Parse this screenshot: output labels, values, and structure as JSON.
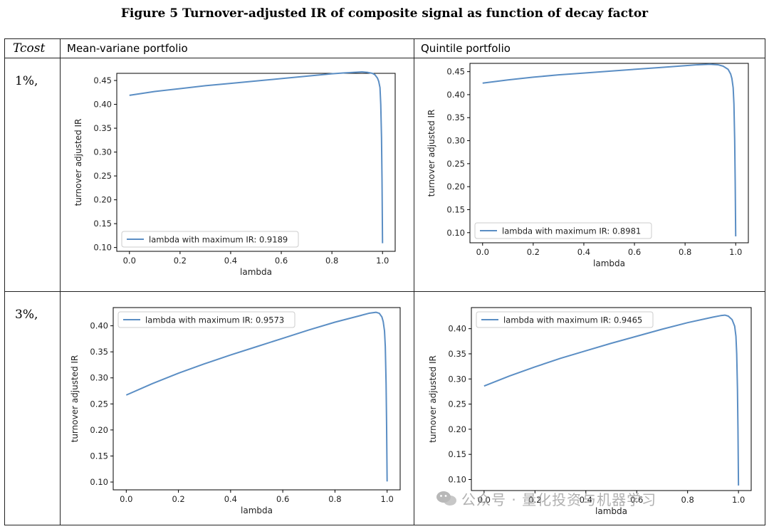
{
  "figure": {
    "title": "Figure 5 Turnover-adjusted IR of composite signal as function of decay factor"
  },
  "table": {
    "col0_header": "Tcost",
    "col1_header": "Mean-variane portfolio",
    "col2_header": "Quintile portfolio",
    "rows": [
      "1%,",
      "3%,"
    ]
  },
  "watermark": {
    "text": "公众号 · 量化投资与机器学习"
  },
  "line_color": "#5b8ec4",
  "chart_data": [
    {
      "id": "mv-1",
      "type": "line",
      "xlabel": "lambda",
      "ylabel": "turnover adjusted IR",
      "xlim": [
        -0.05,
        1.05
      ],
      "ylim": [
        0.092,
        0.465
      ],
      "xticks": [
        "0.0",
        "0.2",
        "0.4",
        "0.6",
        "0.8",
        "1.0"
      ],
      "yticks": [
        "0.10",
        "0.15",
        "0.20",
        "0.25",
        "0.30",
        "0.35",
        "0.40",
        "0.45"
      ],
      "legend_position": "lower left",
      "series": [
        {
          "name": "lambda with maximum IR: 0.9189",
          "x": [
            0.0,
            0.1,
            0.2,
            0.3,
            0.4,
            0.5,
            0.6,
            0.7,
            0.8,
            0.85,
            0.9,
            0.9189,
            0.94,
            0.96,
            0.97,
            0.98,
            0.985,
            0.99,
            0.993,
            0.996,
            0.998,
            1.0
          ],
          "y": [
            0.419,
            0.427,
            0.433,
            0.439,
            0.444,
            0.449,
            0.454,
            0.459,
            0.464,
            0.466,
            0.4675,
            0.468,
            0.467,
            0.465,
            0.462,
            0.455,
            0.448,
            0.435,
            0.4,
            0.33,
            0.24,
            0.109
          ]
        }
      ]
    },
    {
      "id": "q-1",
      "type": "line",
      "xlabel": "lambda",
      "ylabel": "turnover adjusted IR",
      "xlim": [
        -0.05,
        1.05
      ],
      "ylim": [
        0.078,
        0.468
      ],
      "xticks": [
        "0.0",
        "0.2",
        "0.4",
        "0.6",
        "0.8",
        "1.0"
      ],
      "yticks": [
        "0.10",
        "0.15",
        "0.20",
        "0.25",
        "0.30",
        "0.35",
        "0.40",
        "0.45"
      ],
      "legend_position": "lower left",
      "series": [
        {
          "name": "lambda with maximum IR: 0.8981",
          "x": [
            0.0,
            0.1,
            0.2,
            0.3,
            0.4,
            0.5,
            0.6,
            0.7,
            0.8,
            0.85,
            0.8981,
            0.93,
            0.95,
            0.97,
            0.98,
            0.985,
            0.99,
            0.993,
            0.996,
            0.998,
            1.0
          ],
          "y": [
            0.425,
            0.432,
            0.438,
            0.443,
            0.447,
            0.451,
            0.455,
            0.459,
            0.463,
            0.465,
            0.466,
            0.465,
            0.462,
            0.455,
            0.445,
            0.435,
            0.415,
            0.38,
            0.3,
            0.21,
            0.092
          ]
        }
      ]
    },
    {
      "id": "mv-3",
      "type": "line",
      "xlabel": "lambda",
      "ylabel": "turnover adjusted IR",
      "xlim": [
        -0.05,
        1.05
      ],
      "ylim": [
        0.085,
        0.435
      ],
      "xticks": [
        "0.0",
        "0.2",
        "0.4",
        "0.6",
        "0.8",
        "1.0"
      ],
      "yticks": [
        "0.10",
        "0.15",
        "0.20",
        "0.25",
        "0.30",
        "0.35",
        "0.40"
      ],
      "legend_position": "upper left",
      "series": [
        {
          "name": "lambda with maximum IR: 0.9573",
          "x": [
            0.0,
            0.1,
            0.2,
            0.3,
            0.4,
            0.5,
            0.6,
            0.7,
            0.8,
            0.9,
            0.93,
            0.9573,
            0.97,
            0.98,
            0.985,
            0.99,
            0.993,
            0.996,
            0.998,
            1.0
          ],
          "y": [
            0.267,
            0.289,
            0.309,
            0.327,
            0.344,
            0.36,
            0.376,
            0.392,
            0.407,
            0.42,
            0.424,
            0.426,
            0.424,
            0.417,
            0.408,
            0.39,
            0.36,
            0.29,
            0.21,
            0.101
          ]
        }
      ]
    },
    {
      "id": "q-3",
      "type": "line",
      "xlabel": "lambda",
      "ylabel": "turnover adjusted IR",
      "xlim": [
        -0.05,
        1.05
      ],
      "ylim": [
        0.078,
        0.442
      ],
      "xticks": [
        "0.0",
        "0.2",
        "0.4",
        "0.6",
        "0.8",
        "1.0"
      ],
      "yticks": [
        "0.10",
        "0.15",
        "0.20",
        "0.25",
        "0.30",
        "0.35",
        "0.40"
      ],
      "legend_position": "upper left",
      "series": [
        {
          "name": "lambda with maximum IR: 0.9465",
          "x": [
            0.0,
            0.1,
            0.2,
            0.3,
            0.4,
            0.5,
            0.6,
            0.7,
            0.8,
            0.9,
            0.93,
            0.9465,
            0.96,
            0.975,
            0.985,
            0.99,
            0.993,
            0.996,
            0.998,
            1.0
          ],
          "y": [
            0.286,
            0.306,
            0.324,
            0.341,
            0.356,
            0.371,
            0.385,
            0.399,
            0.412,
            0.423,
            0.426,
            0.427,
            0.425,
            0.418,
            0.405,
            0.385,
            0.35,
            0.28,
            0.2,
            0.088
          ]
        }
      ]
    }
  ]
}
